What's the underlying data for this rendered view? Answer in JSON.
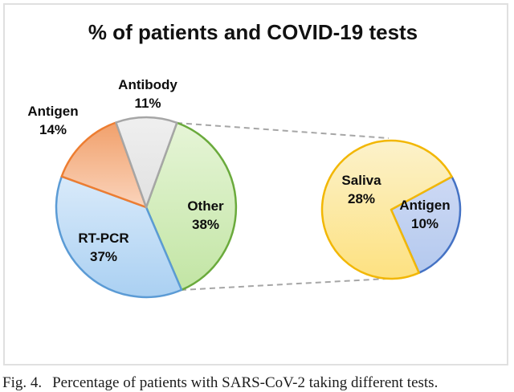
{
  "figure": {
    "title": "% of patients and COVID-19 tests",
    "caption_label": "Fig. 4.",
    "caption_text": "Percentage of patients with SARS-CoV-2 taking different tests."
  },
  "colors": {
    "connector_dash": "#a6a6a6",
    "panel_border": "#e0e0e0",
    "label_text": "#0d0d0d"
  },
  "chart_data": [
    {
      "type": "pie",
      "title": "% of patients and COVID-19 tests",
      "start_angle_deg": 20,
      "slices": [
        {
          "label": "Other",
          "value": 38,
          "pct": "38%",
          "fill": [
            "#e6f5d7",
            "#c2e5a4"
          ],
          "stroke": "#6aaa3c"
        },
        {
          "label": "RT-PCR",
          "value": 37,
          "pct": "37%",
          "fill": [
            "#d9eafa",
            "#aad0f2"
          ],
          "stroke": "#5b9bd5"
        },
        {
          "label": "Antigen",
          "value": 14,
          "pct": "14%",
          "fill": [
            "#f1a06b",
            "#fad4bc"
          ],
          "stroke": "#ed7d31"
        },
        {
          "label": "Antibody",
          "value": 11,
          "pct": "11%",
          "fill": [
            "#efefef",
            "#e1e1e1"
          ],
          "stroke": "#a6a6a6"
        }
      ]
    },
    {
      "type": "pie",
      "expanded_from": "Other",
      "start_angle_deg": 61.5,
      "slices": [
        {
          "label": "Antigen",
          "value": 10,
          "pct": "10%",
          "fill": [
            "#cdd9f4",
            "#b4c9ee"
          ],
          "stroke": "#4472c4"
        },
        {
          "label": "Saliva",
          "value": 28,
          "pct": "28%",
          "fill": [
            "#fcf2cb",
            "#fde180"
          ],
          "stroke": "#f2b705"
        }
      ]
    }
  ]
}
